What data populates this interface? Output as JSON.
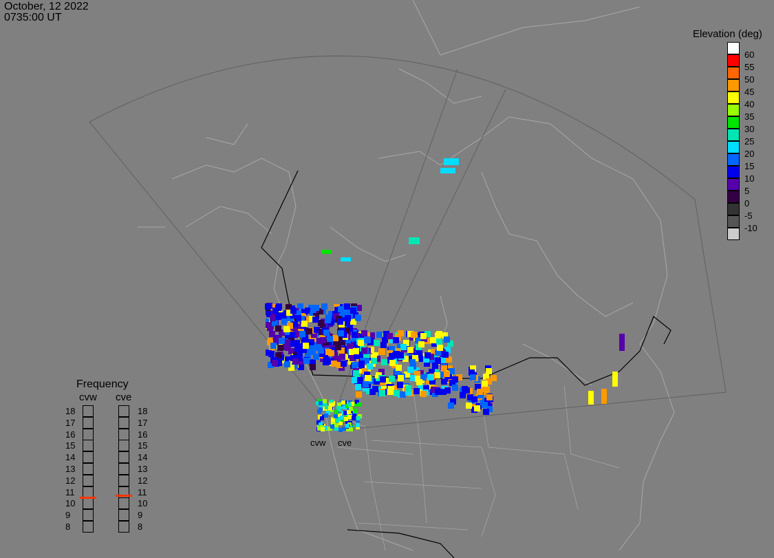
{
  "header": {
    "date": "October, 12 2022",
    "time": "0735:00 UT"
  },
  "colorbar": {
    "title": "Elevation (deg)",
    "levels": [
      {
        "label": "60",
        "color": "#ffffff"
      },
      {
        "label": "55",
        "color": "#ff0000"
      },
      {
        "label": "50",
        "color": "#ff6600"
      },
      {
        "label": "45",
        "color": "#ff9900"
      },
      {
        "label": "40",
        "color": "#ffff00"
      },
      {
        "label": "35",
        "color": "#99ff00"
      },
      {
        "label": "30",
        "color": "#00e600"
      },
      {
        "label": "25",
        "color": "#00e6b3"
      },
      {
        "label": "20",
        "color": "#00ddff"
      },
      {
        "label": "15",
        "color": "#0066ff"
      },
      {
        "label": "10",
        "color": "#0000ee"
      },
      {
        "label": "5",
        "color": "#5500aa"
      },
      {
        "label": "0",
        "color": "#330044"
      },
      {
        "label": "-5",
        "color": "#333333"
      },
      {
        "label": "-10",
        "color": "#555555"
      },
      {
        "label": "",
        "color": "#cccccc"
      }
    ]
  },
  "frequency": {
    "title": "Frequency",
    "columns": [
      {
        "name": "cvw",
        "selected": 10.5
      },
      {
        "name": "cve",
        "selected": 10.7
      }
    ],
    "labels": [
      "18",
      "17",
      "16",
      "15",
      "14",
      "13",
      "12",
      "11",
      "10",
      "9",
      "8"
    ]
  },
  "stations": [
    "cvw",
    "cve"
  ],
  "colors": {
    "background": "#808080",
    "map_lines": "#a9a9a9",
    "border": "#000000"
  }
}
